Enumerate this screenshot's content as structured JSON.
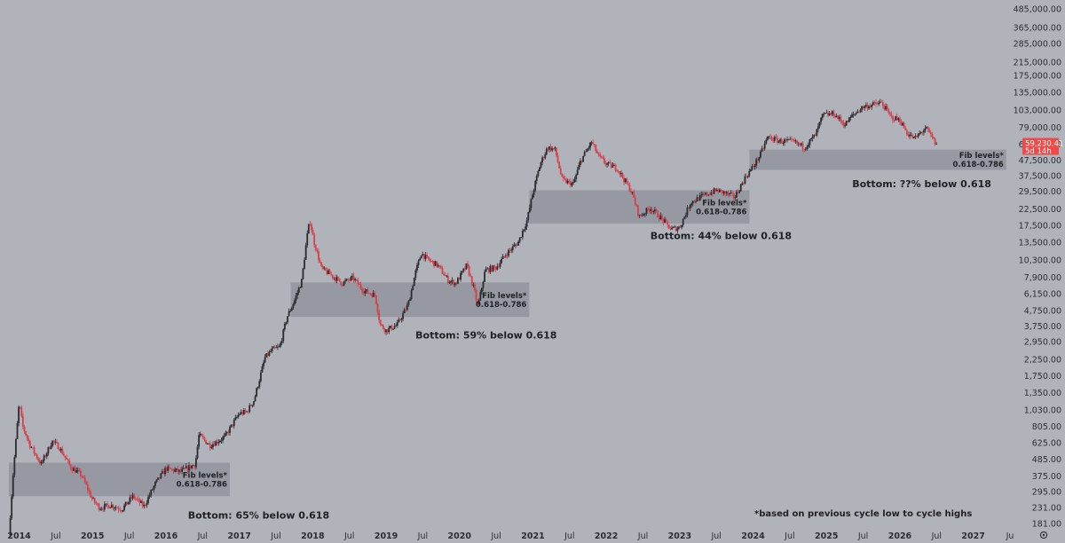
{
  "colors": {
    "background": "#b1b3bb",
    "up_candle": "#2a2b2f",
    "down_candle": "#d6404a",
    "fib_zone": "#8e9098",
    "price_tag": "#f04a48",
    "text": "#1f2024"
  },
  "chart_data": {
    "type": "candlestick",
    "scale": "log",
    "y_ticks": [
      "485,000.00",
      "365,000.00",
      "285,000.00",
      "215,000.00",
      "175,000.00",
      "135,000.00",
      "103,000.00",
      "79,000.00",
      "61,000.00",
      "47,500.00",
      "37,500.00",
      "29,500.00",
      "22,500.00",
      "17,500.00",
      "13,500.00",
      "10,300.00",
      "7,900.00",
      "6,150.00",
      "4,750.00",
      "3,750.00",
      "2,950.00",
      "2,250.00",
      "1,750.00",
      "1,350.00",
      "1,030.00",
      "805.00",
      "625.00",
      "485.00",
      "375.00",
      "295.00",
      "231.00",
      "181.00"
    ],
    "x_ticks": [
      {
        "label": "2014",
        "year": true,
        "t": 2014.0
      },
      {
        "label": "Jul",
        "year": false,
        "t": 2014.5
      },
      {
        "label": "2015",
        "year": true,
        "t": 2015.0
      },
      {
        "label": "Jul",
        "year": false,
        "t": 2015.5
      },
      {
        "label": "2016",
        "year": true,
        "t": 2016.0
      },
      {
        "label": "Jul",
        "year": false,
        "t": 2016.5
      },
      {
        "label": "2017",
        "year": true,
        "t": 2017.0
      },
      {
        "label": "Jul",
        "year": false,
        "t": 2017.5
      },
      {
        "label": "2018",
        "year": true,
        "t": 2018.0
      },
      {
        "label": "Jul",
        "year": false,
        "t": 2018.5
      },
      {
        "label": "2019",
        "year": true,
        "t": 2019.0
      },
      {
        "label": "Jul",
        "year": false,
        "t": 2019.5
      },
      {
        "label": "2020",
        "year": true,
        "t": 2020.0
      },
      {
        "label": "Jul",
        "year": false,
        "t": 2020.5
      },
      {
        "label": "2021",
        "year": true,
        "t": 2021.0
      },
      {
        "label": "Jul",
        "year": false,
        "t": 2021.5
      },
      {
        "label": "2022",
        "year": true,
        "t": 2022.0
      },
      {
        "label": "Jul",
        "year": false,
        "t": 2022.5
      },
      {
        "label": "2023",
        "year": true,
        "t": 2023.0
      },
      {
        "label": "Jul",
        "year": false,
        "t": 2023.5
      },
      {
        "label": "2024",
        "year": true,
        "t": 2024.0
      },
      {
        "label": "Jul",
        "year": false,
        "t": 2024.5
      },
      {
        "label": "2025",
        "year": true,
        "t": 2025.0
      },
      {
        "label": "Jul",
        "year": false,
        "t": 2025.5
      },
      {
        "label": "2026",
        "year": true,
        "t": 2026.0
      },
      {
        "label": "Jul",
        "year": false,
        "t": 2026.5
      },
      {
        "label": "2027",
        "year": true,
        "t": 2027.0
      },
      {
        "label": "Ju",
        "year": false,
        "t": 2027.5
      }
    ],
    "price_path": [
      [
        2013.86,
        150
      ],
      [
        2013.92,
        400
      ],
      [
        2014.0,
        1150
      ],
      [
        2014.05,
        800
      ],
      [
        2014.15,
        600
      ],
      [
        2014.3,
        450
      ],
      [
        2014.45,
        640
      ],
      [
        2014.55,
        580
      ],
      [
        2014.7,
        430
      ],
      [
        2014.85,
        380
      ],
      [
        2015.0,
        260
      ],
      [
        2015.1,
        230
      ],
      [
        2015.25,
        240
      ],
      [
        2015.4,
        225
      ],
      [
        2015.55,
        275
      ],
      [
        2015.7,
        235
      ],
      [
        2015.85,
        330
      ],
      [
        2016.0,
        420
      ],
      [
        2016.2,
        400
      ],
      [
        2016.4,
        450
      ],
      [
        2016.45,
        700
      ],
      [
        2016.6,
        600
      ],
      [
        2016.8,
        680
      ],
      [
        2017.0,
        980
      ],
      [
        2017.1,
        1000
      ],
      [
        2017.2,
        1200
      ],
      [
        2017.35,
        2300
      ],
      [
        2017.45,
        2600
      ],
      [
        2017.55,
        2700
      ],
      [
        2017.65,
        4300
      ],
      [
        2017.75,
        5500
      ],
      [
        2017.85,
        7500
      ],
      [
        2017.92,
        14500
      ],
      [
        2017.96,
        19000
      ],
      [
        2018.02,
        13500
      ],
      [
        2018.12,
        9000
      ],
      [
        2018.25,
        8200
      ],
      [
        2018.4,
        7200
      ],
      [
        2018.55,
        7800
      ],
      [
        2018.7,
        6400
      ],
      [
        2018.85,
        6000
      ],
      [
        2018.92,
        3800
      ],
      [
        2019.0,
        3500
      ],
      [
        2019.15,
        3800
      ],
      [
        2019.3,
        5200
      ],
      [
        2019.4,
        8500
      ],
      [
        2019.48,
        11500
      ],
      [
        2019.55,
        10500
      ],
      [
        2019.7,
        9500
      ],
      [
        2019.85,
        7500
      ],
      [
        2019.95,
        7200
      ],
      [
        2020.1,
        9500
      ],
      [
        2020.2,
        6500
      ],
      [
        2020.25,
        5000
      ],
      [
        2020.35,
        8800
      ],
      [
        2020.5,
        9200
      ],
      [
        2020.65,
        11500
      ],
      [
        2020.8,
        13500
      ],
      [
        2020.92,
        19000
      ],
      [
        2021.0,
        29000
      ],
      [
        2021.1,
        45000
      ],
      [
        2021.2,
        58000
      ],
      [
        2021.3,
        56000
      ],
      [
        2021.4,
        35000
      ],
      [
        2021.55,
        33000
      ],
      [
        2021.65,
        47000
      ],
      [
        2021.8,
        63000
      ],
      [
        2021.9,
        50000
      ],
      [
        2022.0,
        45000
      ],
      [
        2022.15,
        42000
      ],
      [
        2022.35,
        29000
      ],
      [
        2022.45,
        20000
      ],
      [
        2022.6,
        23000
      ],
      [
        2022.75,
        19500
      ],
      [
        2022.88,
        16500
      ],
      [
        2023.0,
        17000
      ],
      [
        2023.15,
        25000
      ],
      [
        2023.35,
        28000
      ],
      [
        2023.5,
        30000
      ],
      [
        2023.6,
        29000
      ],
      [
        2023.75,
        27000
      ],
      [
        2023.9,
        37000
      ],
      [
        2024.0,
        43000
      ],
      [
        2024.1,
        52000
      ],
      [
        2024.2,
        68000
      ],
      [
        2024.35,
        64000
      ],
      [
        2024.55,
        63000
      ],
      [
        2024.7,
        58000
      ],
      [
        2024.85,
        70000
      ],
      [
        2024.95,
        95000
      ],
      [
        2025.1,
        97000
      ],
      [
        2025.25,
        82000
      ],
      [
        2025.35,
        94000
      ],
      [
        2025.5,
        108000
      ],
      [
        2025.65,
        112000
      ],
      [
        2025.75,
        115000
      ],
      [
        2025.88,
        92000
      ],
      [
        2026.0,
        88000
      ],
      [
        2026.1,
        72000
      ],
      [
        2026.2,
        66000
      ],
      [
        2026.35,
        78000
      ],
      [
        2026.45,
        66000
      ],
      [
        2026.5,
        59230
      ]
    ],
    "fib_zones": [
      {
        "t0": 2013.86,
        "t1": 2016.87,
        "low": 275,
        "high": 460,
        "label1": "Fib levels*",
        "label2": "0.618-0.786"
      },
      {
        "t0": 2017.7,
        "t1": 2020.95,
        "low": 4300,
        "high": 7300,
        "label1": "Fib levels*",
        "label2": "0.618-0.786"
      },
      {
        "t0": 2020.95,
        "t1": 2023.95,
        "low": 18000,
        "high": 30000,
        "label1": "Fib levels*",
        "label2": "0.618-0.786"
      },
      {
        "t0": 2023.95,
        "t1": 2027.45,
        "low": 41000,
        "high": 56000,
        "label1": "Fib levels*",
        "label2": "0.618-0.786"
      }
    ],
    "annotations": [
      {
        "text": "Bottom: 65% below 0.618",
        "t": 2016.3,
        "price": 195
      },
      {
        "text": "Bottom: 59% below 0.618",
        "t": 2019.4,
        "price": 3080
      },
      {
        "text": "Bottom: 44% below 0.618",
        "t": 2022.6,
        "price": 14200
      },
      {
        "text": "Bottom: ??% below 0.618",
        "t": 2025.35,
        "price": 31500
      }
    ],
    "footnote": "*based on previous cycle low to cycle highs",
    "current_price": {
      "label": "59,230.41",
      "sub": "5d 14h",
      "price": 59230
    }
  }
}
